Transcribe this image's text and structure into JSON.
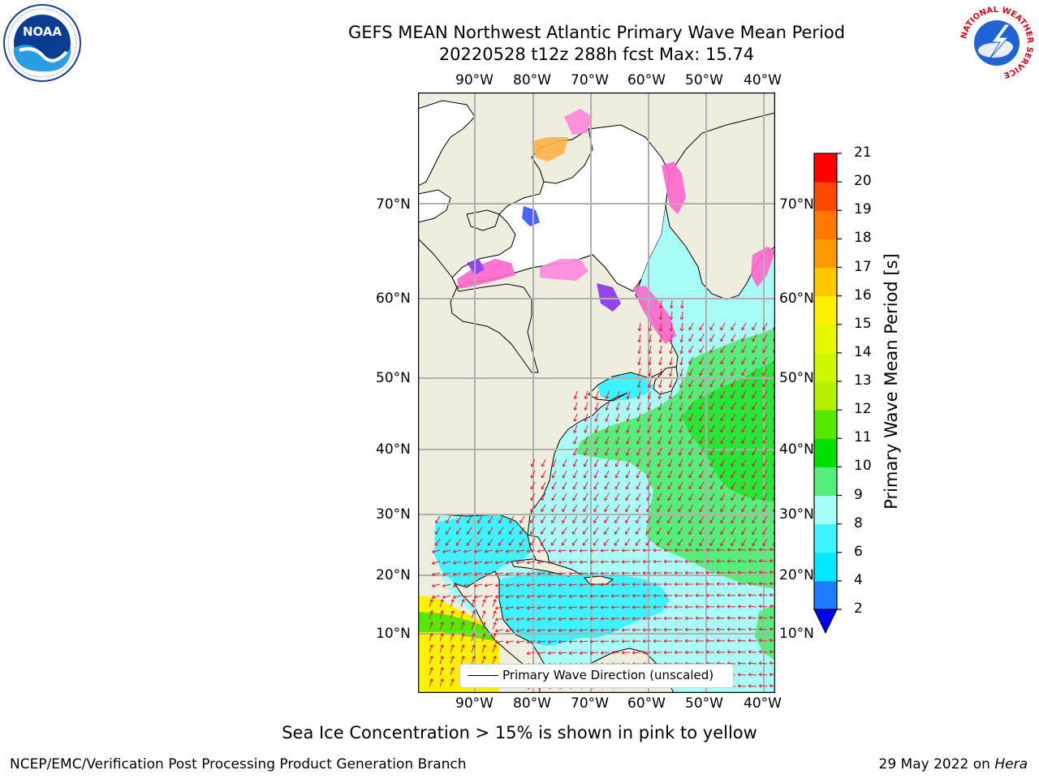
{
  "header": {
    "title_line1": "GEFS MEAN Northwest Atlantic Primary Wave Mean Period",
    "title_line2": "20220528 t12z 288h fcst   Max: 15.74"
  },
  "logos": {
    "left": {
      "icon": "noaa-logo",
      "text": "NOAA",
      "ring": "NATIONAL OCEANIC AND ATMOSPHERIC ADMINISTRATION · U.S. DEPARTMENT OF COMMERCE"
    },
    "right": {
      "icon": "nws-logo",
      "ring": "NATIONAL WEATHER SERVICE"
    }
  },
  "map": {
    "lon_labels": [
      "90°W",
      "80°W",
      "70°W",
      "60°W",
      "50°W",
      "40°W"
    ],
    "lat_labels": [
      "70°N",
      "60°N",
      "50°N",
      "40°N",
      "30°N",
      "20°N",
      "10°N"
    ],
    "land_color": "#efedde",
    "grid_color": "#b0b0b0",
    "arrow_color": "#e0203a",
    "legend_label": "Primary Wave Direction (unscaled)"
  },
  "colorbar": {
    "title": "Primary Wave Mean Period [s]",
    "ticks": [
      "2",
      "4",
      "6",
      "8",
      "9",
      "10",
      "11",
      "12",
      "13",
      "14",
      "15",
      "16",
      "17",
      "18",
      "19",
      "20",
      "21"
    ],
    "colors": [
      "#1e7cff",
      "#00e8ff",
      "#3cf3ff",
      "#a8fdf7",
      "#55ee7a",
      "#00e000",
      "#55e800",
      "#b4f000",
      "#ccf800",
      "#e6f800",
      "#fff000",
      "#ffc800",
      "#ff9a00",
      "#ff7800",
      "#ff4800",
      "#ff0000"
    ],
    "under_color": "#0000ee"
  },
  "footnote": "Sea Ice Concentration > 15% is shown in pink to yellow",
  "credit": "NCEP/EMC/Verification Post Processing Product Generation Branch",
  "date_text": "29 May 2022 on ",
  "machine": "Hera"
}
